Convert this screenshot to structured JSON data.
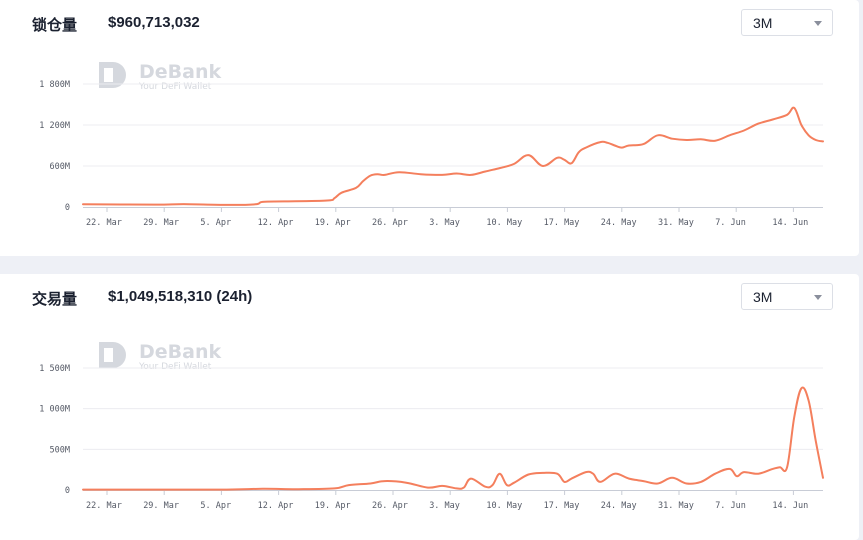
{
  "colors": {
    "line": "#f47f5d",
    "grid": "#ececf0",
    "axis": "#c8ccd6"
  },
  "watermark": {
    "title": "DeBank",
    "subtitle": "Your DeFi Wallet"
  },
  "tvl": {
    "label": "锁仓量",
    "value": "$960,713,032",
    "range_select": "3M"
  },
  "volume": {
    "label": "交易量",
    "value": "$1,049,518,310 (24h)",
    "range_select": "3M"
  },
  "chart_data": [
    {
      "type": "line",
      "name": "tvl",
      "x_tick_labels": [
        "22. Mar",
        "29. Mar",
        "5. Apr",
        "12. Apr",
        "19. Apr",
        "26. Apr",
        "3. May",
        "10. May",
        "17. May",
        "24. May",
        "31. May",
        "7. Jun",
        "14. Jun"
      ],
      "y_tick_labels": [
        "0",
        "600M",
        "1 200M",
        "1 800M"
      ],
      "ylim": [
        0,
        1800000000
      ],
      "grid": true,
      "x_day": [
        0,
        10,
        14,
        20,
        24,
        25,
        28,
        34,
        35,
        36,
        38,
        39,
        40,
        41,
        42,
        44,
        47,
        50,
        52,
        54,
        56,
        58,
        60,
        62,
        64,
        66,
        67,
        68,
        69,
        70,
        72,
        73,
        74,
        75,
        76,
        78,
        80,
        82,
        84,
        86,
        88,
        90,
        92,
        94,
        96,
        98,
        99,
        100,
        101,
        102,
        103
      ],
      "values": [
        40000000,
        35000000,
        42000000,
        30000000,
        40000000,
        75000000,
        82000000,
        95000000,
        130000000,
        210000000,
        280000000,
        380000000,
        460000000,
        480000000,
        470000000,
        510000000,
        480000000,
        470000000,
        490000000,
        470000000,
        520000000,
        570000000,
        630000000,
        760000000,
        600000000,
        720000000,
        690000000,
        640000000,
        800000000,
        870000000,
        950000000,
        940000000,
        900000000,
        870000000,
        900000000,
        920000000,
        1050000000,
        1000000000,
        980000000,
        990000000,
        970000000,
        1050000000,
        1120000000,
        1220000000,
        1280000000,
        1350000000,
        1450000000,
        1200000000,
        1050000000,
        980000000,
        960000000
      ]
    },
    {
      "type": "line",
      "name": "volume",
      "x_tick_labels": [
        "22. Mar",
        "29. Mar",
        "5. Apr",
        "12. Apr",
        "19. Apr",
        "26. Apr",
        "3. May",
        "10. May",
        "17. May",
        "24. May",
        "31. May",
        "7. Jun",
        "14. Jun"
      ],
      "y_tick_labels": [
        "0",
        "500M",
        "1 000M",
        "1 500M"
      ],
      "ylim": [
        0,
        1500000000
      ],
      "grid": true,
      "x_day": [
        0,
        10,
        20,
        25,
        30,
        35,
        37,
        40,
        42,
        45,
        48,
        50,
        52,
        53,
        54,
        56,
        57,
        58,
        59,
        60,
        62,
        64,
        66,
        67,
        68,
        70,
        71,
        72,
        74,
        76,
        78,
        80,
        82,
        84,
        86,
        88,
        90,
        91,
        92,
        94,
        96,
        97,
        98,
        99,
        100,
        101,
        102,
        103
      ],
      "values": [
        5000000,
        5000000,
        5000000,
        15000000,
        10000000,
        20000000,
        60000000,
        80000000,
        110000000,
        90000000,
        30000000,
        50000000,
        20000000,
        30000000,
        140000000,
        40000000,
        60000000,
        200000000,
        60000000,
        90000000,
        190000000,
        210000000,
        200000000,
        100000000,
        140000000,
        220000000,
        200000000,
        100000000,
        200000000,
        140000000,
        110000000,
        80000000,
        150000000,
        80000000,
        100000000,
        200000000,
        260000000,
        170000000,
        220000000,
        200000000,
        260000000,
        280000000,
        280000000,
        900000000,
        1250000000,
        1100000000,
        600000000,
        150000000
      ]
    }
  ]
}
